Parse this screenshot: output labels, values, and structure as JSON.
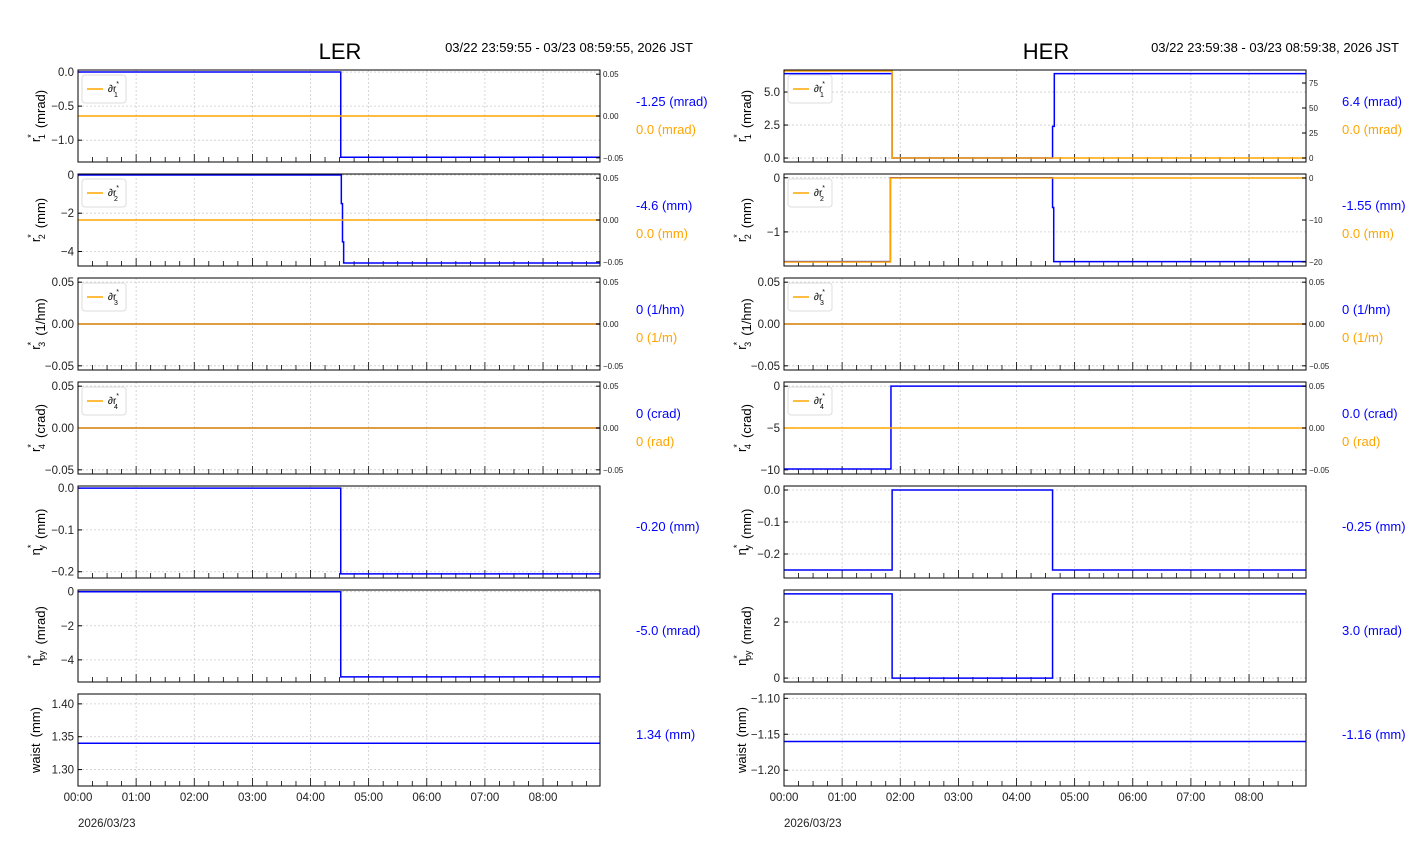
{
  "colors": {
    "blue": "#0000ff",
    "orange": "#ffa500"
  },
  "chart_data": [
    {
      "type": "line",
      "title": "LER",
      "range": "03/22 23:59:55 - 03/23 08:59:55, 2026 JST",
      "date_label": "2026/03/23",
      "xlim_hours": [
        0,
        8.98
      ],
      "xticks": [
        "00:00",
        "01:00",
        "02:00",
        "03:00",
        "04:00",
        "05:00",
        "06:00",
        "07:00",
        "08:00"
      ],
      "panels": [
        {
          "ylabel": {
            "base": "r",
            "sup": "*",
            "sub": "1",
            "unit": "(mrad)"
          },
          "ylim": [
            -1.32,
            0.03
          ],
          "yticks": [
            0.0,
            -0.5,
            -1.0
          ],
          "ytick_labels": [
            "0.0",
            "−0.5",
            "−1.0"
          ],
          "blue": [
            [
              0,
              0
            ],
            [
              4.52,
              -1.25
            ]
          ],
          "legend": {
            "base": "∂r",
            "sup": "*",
            "sub": "1"
          },
          "orange": [
            [
              0,
              0
            ]
          ],
          "rlim": [
            -0.055,
            0.055
          ],
          "rticks": [
            0.05,
            0,
            -0.05
          ],
          "rtick_labels": [
            "0.05",
            "0.00",
            "−0.05"
          ],
          "value_blue": "-1.25 (mrad)",
          "value_orange": "0.0 (mrad)"
        },
        {
          "ylabel": {
            "base": "r",
            "sup": "*",
            "sub": "2",
            "unit": "(mm)"
          },
          "ylim": [
            -4.76,
            0.05
          ],
          "yticks": [
            0,
            -2,
            -4
          ],
          "ytick_labels": [
            "0",
            "−2",
            "−4"
          ],
          "blue": [
            [
              0,
              0
            ],
            [
              4.53,
              -1.5
            ],
            [
              4.55,
              -3.5
            ],
            [
              4.57,
              -4.6
            ]
          ],
          "legend": {
            "base": "∂r",
            "sup": "*",
            "sub": "2"
          },
          "orange": [
            [
              0,
              0
            ]
          ],
          "rlim": [
            -0.055,
            0.055
          ],
          "rticks": [
            0.05,
            0,
            -0.05
          ],
          "rtick_labels": [
            "0.05",
            "0.00",
            "−0.05"
          ],
          "value_blue": "-4.6 (mm)",
          "value_orange": "0.0 (mm)"
        },
        {
          "ylabel": {
            "base": "r",
            "sup": "*",
            "sub": "3",
            "unit": "(1/hm)"
          },
          "ylim": [
            -0.055,
            0.055
          ],
          "yticks": [
            0.05,
            0,
            -0.05
          ],
          "ytick_labels": [
            "0.05",
            "0.00",
            "−0.05"
          ],
          "blue": [
            [
              0,
              0
            ]
          ],
          "legend": {
            "base": "∂r",
            "sup": "*",
            "sub": "3"
          },
          "orange": [
            [
              0,
              0
            ]
          ],
          "rlim": [
            -0.055,
            0.055
          ],
          "rticks": [
            0.05,
            0,
            -0.05
          ],
          "rtick_labels": [
            "0.05",
            "0.00",
            "−0.05"
          ],
          "value_blue": "0 (1/hm)",
          "value_orange": "0 (1/m)"
        },
        {
          "ylabel": {
            "base": "r",
            "sup": "*",
            "sub": "4",
            "unit": "(crad)"
          },
          "ylim": [
            -0.055,
            0.055
          ],
          "yticks": [
            0.05,
            0,
            -0.05
          ],
          "ytick_labels": [
            "0.05",
            "0.00",
            "−0.05"
          ],
          "blue": [
            [
              0,
              0
            ]
          ],
          "legend": {
            "base": "∂r",
            "sup": "*",
            "sub": "4"
          },
          "orange": [
            [
              0,
              0
            ]
          ],
          "rlim": [
            -0.055,
            0.055
          ],
          "rticks": [
            0.05,
            0,
            -0.05
          ],
          "rtick_labels": [
            "0.05",
            "0.00",
            "−0.05"
          ],
          "value_blue": "0 (crad)",
          "value_orange": "0 (rad)"
        },
        {
          "ylabel": {
            "base": "η",
            "sup": "*",
            "sub": "y",
            "unit": "(mm)"
          },
          "ylim": [
            -0.215,
            0.005
          ],
          "yticks": [
            0,
            -0.1,
            -0.2
          ],
          "ytick_labels": [
            "0.0",
            "−0.1",
            "−0.2"
          ],
          "blue": [
            [
              0,
              0
            ],
            [
              4.52,
              -0.205
            ]
          ],
          "value_blue": "-0.20 (mm)"
        },
        {
          "ylabel": {
            "base": "η",
            "sup": "*",
            "sub": "py",
            "unit": "(mrad)"
          },
          "ylim": [
            -5.3,
            0.1
          ],
          "yticks": [
            0,
            -2,
            -4
          ],
          "ytick_labels": [
            "0",
            "−2",
            "−4"
          ],
          "blue": [
            [
              0,
              0
            ],
            [
              4.52,
              -5.0
            ]
          ],
          "value_blue": "-5.0 (mrad)"
        },
        {
          "ylabel": {
            "base": "waist",
            "sup": "",
            "sub": "",
            "unit": "(mm)"
          },
          "ylim": [
            1.275,
            1.415
          ],
          "yticks": [
            1.4,
            1.35,
            1.3
          ],
          "ytick_labels": [
            "1.40",
            "1.35",
            "1.30"
          ],
          "blue": [
            [
              0,
              1.34
            ]
          ],
          "value_blue": "1.34 (mm)"
        }
      ]
    },
    {
      "type": "line",
      "title": "HER",
      "range": "03/22 23:59:38 - 03/23 08:59:38, 2026 JST",
      "date_label": "2026/03/23",
      "xlim_hours": [
        0,
        8.98
      ],
      "xticks": [
        "00:00",
        "01:00",
        "02:00",
        "03:00",
        "04:00",
        "05:00",
        "06:00",
        "07:00",
        "08:00"
      ],
      "panels": [
        {
          "ylabel": {
            "base": "r",
            "sup": "*",
            "sub": "1",
            "unit": "(mrad)"
          },
          "ylim": [
            -0.3,
            6.67
          ],
          "yticks": [
            0,
            2.5,
            5.0
          ],
          "ytick_labels": [
            "0.0",
            "2.5",
            "5.0"
          ],
          "blue": [
            [
              0,
              6.4
            ],
            [
              1.86,
              0
            ],
            [
              4.62,
              2.4
            ],
            [
              4.65,
              6.4
            ]
          ],
          "legend": {
            "base": "∂r",
            "sup": "*",
            "sub": "1"
          },
          "orange": [
            [
              0,
              87
            ],
            [
              1.86,
              0
            ]
          ],
          "rlim": [
            -4,
            88
          ],
          "rticks": [
            0,
            25,
            50,
            75
          ],
          "rtick_labels": [
            "0",
            "25",
            "50",
            "75"
          ],
          "value_blue": "6.4 (mrad)",
          "value_orange": "0.0 (mrad)"
        },
        {
          "ylabel": {
            "base": "r",
            "sup": "*",
            "sub": "2",
            "unit": "(mm)"
          },
          "ylim": [
            -1.63,
            0.07
          ],
          "yticks": [
            0,
            -1
          ],
          "ytick_labels": [
            "0",
            "−1"
          ],
          "blue": [
            [
              0,
              -1.55
            ],
            [
              1.83,
              0
            ],
            [
              4.62,
              -0.55
            ],
            [
              4.64,
              -1.55
            ]
          ],
          "legend": {
            "base": "∂r",
            "sup": "*",
            "sub": "2"
          },
          "orange": [
            [
              0,
              -20
            ],
            [
              1.83,
              0
            ]
          ],
          "rlim": [
            -20.95,
            0.95
          ],
          "rticks": [
            0,
            -10,
            -20
          ],
          "rtick_labels": [
            "0",
            "−10",
            "−20"
          ],
          "value_blue": "-1.55 (mm)",
          "value_orange": "0.0 (mm)"
        },
        {
          "ylabel": {
            "base": "r",
            "sup": "*",
            "sub": "3",
            "unit": "(1/hm)"
          },
          "ylim": [
            -0.055,
            0.055
          ],
          "yticks": [
            0.05,
            0,
            -0.05
          ],
          "ytick_labels": [
            "0.05",
            "0.00",
            "−0.05"
          ],
          "blue": [
            [
              0,
              0
            ]
          ],
          "legend": {
            "base": "∂r",
            "sup": "*",
            "sub": "3"
          },
          "orange": [
            [
              0,
              0
            ]
          ],
          "rlim": [
            -0.055,
            0.055
          ],
          "rticks": [
            0.05,
            0,
            -0.05
          ],
          "rtick_labels": [
            "0.05",
            "0.00",
            "−0.05"
          ],
          "value_blue": "0 (1/hm)",
          "value_orange": "0 (1/m)"
        },
        {
          "ylabel": {
            "base": "r",
            "sup": "*",
            "sub": "4",
            "unit": "(crad)"
          },
          "ylim": [
            -10.5,
            0.5
          ],
          "yticks": [
            0,
            -5,
            -10
          ],
          "ytick_labels": [
            "0",
            "−5",
            "−10"
          ],
          "blue": [
            [
              0,
              -9.9
            ],
            [
              1.84,
              0
            ]
          ],
          "legend": {
            "base": "∂r",
            "sup": "*",
            "sub": "4"
          },
          "orange": [
            [
              0,
              0
            ]
          ],
          "rlim": [
            -0.055,
            0.055
          ],
          "rticks": [
            0.05,
            0,
            -0.05
          ],
          "rtick_labels": [
            "0.05",
            "0.00",
            "−0.05"
          ],
          "value_blue": "0.0 (crad)",
          "value_orange": "0 (rad)"
        },
        {
          "ylabel": {
            "base": "η",
            "sup": "*",
            "sub": "y",
            "unit": "(mm)"
          },
          "ylim": [
            -0.275,
            0.0125
          ],
          "yticks": [
            0,
            -0.1,
            -0.2
          ],
          "ytick_labels": [
            "0.0",
            "−0.1",
            "−0.2"
          ],
          "blue": [
            [
              0,
              -0.25
            ],
            [
              1.86,
              0
            ],
            [
              4.62,
              -0.25
            ]
          ],
          "value_blue": "-0.25 (mm)"
        },
        {
          "ylabel": {
            "base": "η",
            "sup": "*",
            "sub": "py",
            "unit": "(mrad)"
          },
          "ylim": [
            -0.14,
            3.14
          ],
          "yticks": [
            0,
            2
          ],
          "ytick_labels": [
            "0",
            "2"
          ],
          "blue": [
            [
              0,
              3.0
            ],
            [
              1.86,
              0
            ],
            [
              4.62,
              3.0
            ]
          ],
          "value_blue": "3.0 (mrad)"
        },
        {
          "ylabel": {
            "base": "waist",
            "sup": "",
            "sub": "",
            "unit": "(mm)"
          },
          "ylim": [
            -1.222,
            -1.094
          ],
          "yticks": [
            -1.1,
            -1.15,
            -1.2
          ],
          "ytick_labels": [
            "−1.10",
            "−1.15",
            "−1.20"
          ],
          "blue": [
            [
              0,
              -1.16
            ]
          ],
          "value_blue": "-1.16 (mm)"
        }
      ]
    }
  ]
}
